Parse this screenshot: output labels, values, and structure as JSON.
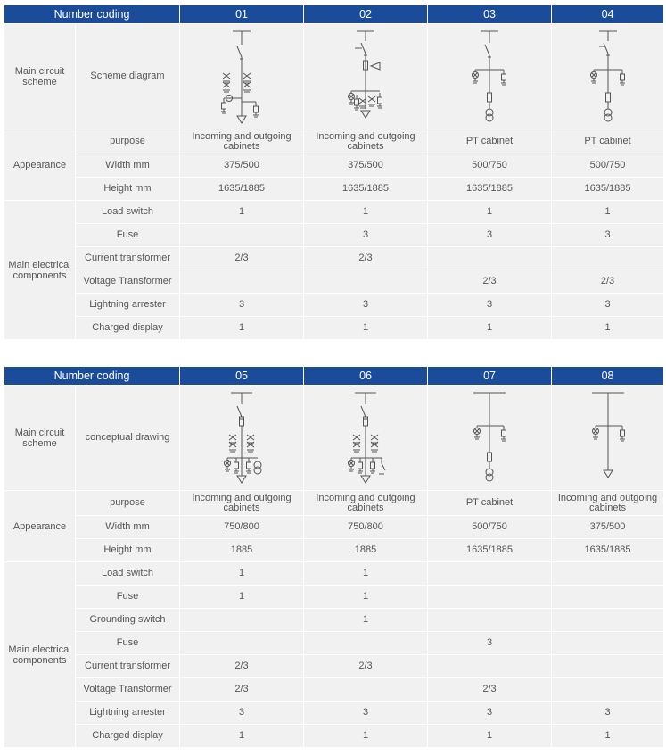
{
  "table1": {
    "header": {
      "label": "Number coding",
      "codes": [
        "01",
        "02",
        "03",
        "04"
      ]
    },
    "main_circuit": {
      "group": "Main circuit scheme",
      "label": "Scheme diagram"
    },
    "appearance": {
      "group": "Appearance",
      "purpose": {
        "label": "purpose",
        "values": [
          "Incoming and outgoing cabinets",
          "Incoming and outgoing cabinets",
          "PT cabinet",
          "PT cabinet"
        ]
      },
      "width": {
        "label": "Width mm",
        "values": [
          "375/500",
          "375/500",
          "500/750",
          "500/750"
        ]
      },
      "height": {
        "label": "Height mm",
        "values": [
          "1635/1885",
          "1635/1885",
          "1635/1885",
          "1635/1885"
        ]
      }
    },
    "components": {
      "group": "Main electrical components",
      "rows": [
        {
          "label": "Load switch",
          "values": [
            "1",
            "1",
            "1",
            "1"
          ]
        },
        {
          "label": "Fuse",
          "values": [
            "",
            "3",
            "3",
            "3"
          ]
        },
        {
          "label": "Current transformer",
          "values": [
            "2/3",
            "2/3",
            "",
            ""
          ]
        },
        {
          "label": "Voltage Transformer",
          "values": [
            "",
            "",
            "2/3",
            "2/3"
          ]
        },
        {
          "label": "Lightning arrester",
          "values": [
            "3",
            "3",
            "3",
            "3"
          ]
        },
        {
          "label": "Charged display",
          "values": [
            "1",
            "1",
            "1",
            "1"
          ]
        }
      ]
    }
  },
  "table2": {
    "header": {
      "label": "Number coding",
      "codes": [
        "05",
        "06",
        "07",
        "08"
      ]
    },
    "main_circuit": {
      "group": "Main circuit scheme",
      "label": "conceptual drawing"
    },
    "appearance": {
      "group": "Appearance",
      "purpose": {
        "label": "purpose",
        "values": [
          "Incoming and outgoing cabinets",
          "Incoming and outgoing cabinets",
          "PT cabinet",
          "Incoming and outgoing cabinets"
        ]
      },
      "width": {
        "label": "Width mm",
        "values": [
          "750/800",
          "750/800",
          "500/750",
          "375/500"
        ]
      },
      "height": {
        "label": "Height mm",
        "values": [
          "1885",
          "1885",
          "1635/1885",
          "1635/1885"
        ]
      }
    },
    "components": {
      "group": "Main electrical components",
      "rows": [
        {
          "label": "Load switch",
          "values": [
            "1",
            "1",
            "",
            ""
          ]
        },
        {
          "label": "Fuse",
          "values": [
            "1",
            "1",
            "",
            ""
          ]
        },
        {
          "label": "Grounding switch",
          "values": [
            "",
            "1",
            "",
            ""
          ]
        },
        {
          "label": "Fuse",
          "values": [
            "",
            "",
            "3",
            ""
          ]
        },
        {
          "label": "Current transformer",
          "values": [
            "2/3",
            "2/3",
            "",
            ""
          ]
        },
        {
          "label": "Voltage Transformer",
          "values": [
            "2/3",
            "",
            "2/3",
            ""
          ]
        },
        {
          "label": "Lightning arrester",
          "values": [
            "3",
            "3",
            "3",
            "3"
          ]
        },
        {
          "label": "Charged display",
          "values": [
            "1",
            "1",
            "1",
            "1"
          ]
        }
      ]
    }
  }
}
